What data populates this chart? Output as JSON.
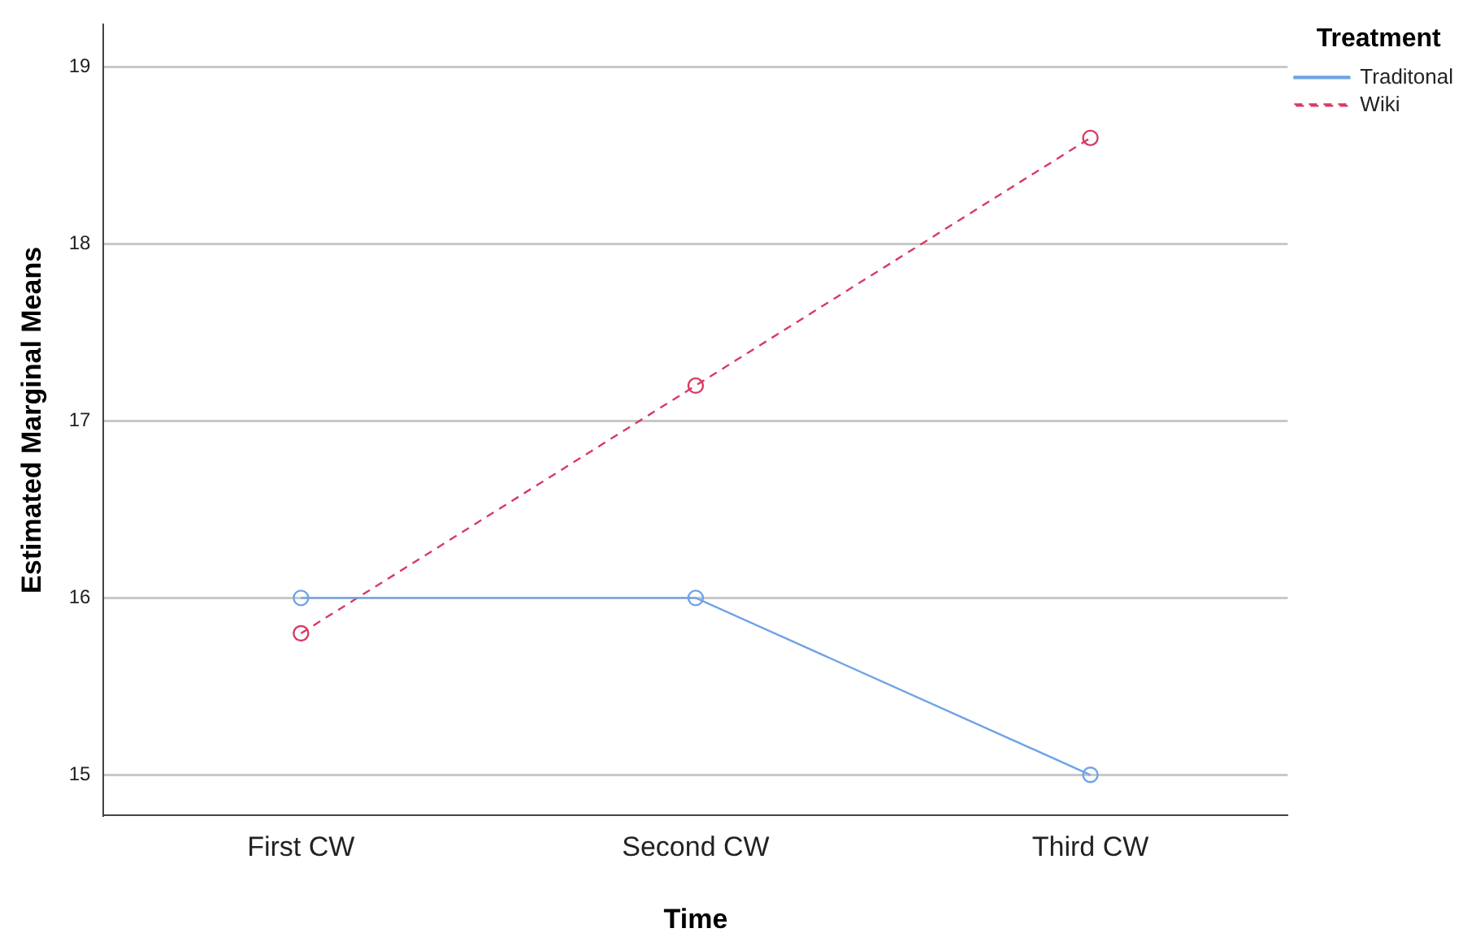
{
  "chart_data": {
    "type": "line",
    "xlabel": "Time",
    "ylabel": "Estimated Marginal Means",
    "legend_title": "Treatment",
    "categories": [
      "First CW",
      "Second CW",
      "Third CW"
    ],
    "series": [
      {
        "name": "Traditonal",
        "color": "#6fa3e6",
        "values": [
          16,
          16,
          15
        ],
        "line_style": "solid"
      },
      {
        "name": "Wiki",
        "color": "#d83a62",
        "values": [
          15.8,
          17.2,
          18.6
        ],
        "line_style": "dashed"
      }
    ],
    "ylim": [
      14.77,
      19.24
    ],
    "yticks": [
      15,
      16,
      17,
      18,
      19
    ],
    "grid": "y",
    "legend": "top right",
    "marker": "circle"
  }
}
